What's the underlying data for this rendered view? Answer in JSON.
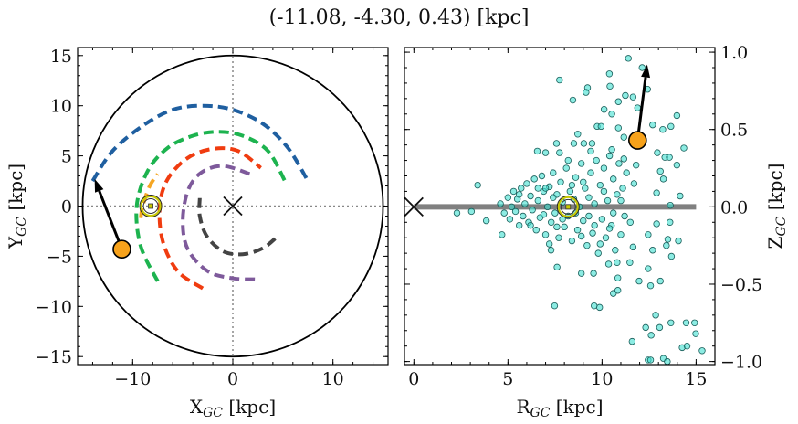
{
  "title": "(-11.08, -4.30, 0.43) [kpc]",
  "chart_data": [
    {
      "type": "scatter",
      "panel": "left",
      "xlabel": {
        "main": "X",
        "sub": "GC",
        "unit": " [kpc]"
      },
      "ylabel": {
        "main": "Y",
        "sub": "GC",
        "unit": " [kpc]"
      },
      "xlim": [
        -15.5,
        15.5
      ],
      "ylim": [
        -15.8,
        15.8
      ],
      "xticks": [
        -10,
        0,
        10
      ],
      "xtick_labels": [
        "−10",
        "0",
        "10"
      ],
      "xminor_step": 2,
      "yticks": [
        -15,
        -10,
        -5,
        0,
        5,
        10,
        15
      ],
      "ytick_labels": [
        "−15",
        "−10",
        "−5",
        "0",
        "5",
        "10",
        "15"
      ],
      "yminor_step": 1,
      "grid": false,
      "reference_lines": {
        "x": 0,
        "y": 0,
        "style": "dotted",
        "color": "#888888"
      },
      "boundary_circle_radius": 15,
      "galactic_center": [
        0,
        0
      ],
      "sun_position": [
        -8.2,
        0
      ],
      "source_position": [
        -11.08,
        -4.3
      ],
      "source_velocity_arrow_tip": [
        -13.8,
        2.7
      ],
      "spiral_arms": [
        {
          "color": "#1f5fa0",
          "points": [
            [
              -14,
              2.5
            ],
            [
              -12,
              5.5
            ],
            [
              -9,
              8
            ],
            [
              -6,
              9.6
            ],
            [
              -3,
              10
            ],
            [
              0,
              9.6
            ],
            [
              3,
              8.2
            ],
            [
              5.5,
              5.8
            ],
            [
              7.5,
              2.5
            ]
          ]
        },
        {
          "color": "#1db34f",
          "points": [
            [
              -7.5,
              -7.5
            ],
            [
              -9.2,
              -4
            ],
            [
              -9.6,
              0
            ],
            [
              -8.5,
              3.5
            ],
            [
              -6.5,
              5.8
            ],
            [
              -4,
              7
            ],
            [
              -1.5,
              7.4
            ],
            [
              1,
              7
            ],
            [
              3.5,
              5.5
            ],
            [
              5.2,
              2.5
            ]
          ]
        },
        {
          "color": "#f5a623",
          "points": [
            [
              -9.2,
              -1.2
            ],
            [
              -9.0,
              0
            ],
            [
              -8.3,
              2
            ],
            [
              -7.5,
              3.2
            ]
          ]
        },
        {
          "color": "#f03c10",
          "points": [
            [
              -3,
              -8.2
            ],
            [
              -5.5,
              -6.5
            ],
            [
              -7,
              -3.5
            ],
            [
              -7.3,
              0
            ],
            [
              -6.5,
              2.7
            ],
            [
              -4.5,
              4.8
            ],
            [
              -2,
              5.7
            ],
            [
              0.5,
              5.5
            ],
            [
              2.8,
              3.8
            ]
          ]
        },
        {
          "color": "#7e5a9b",
          "points": [
            [
              2.2,
              -7.3
            ],
            [
              0,
              -7.2
            ],
            [
              -2.5,
              -6.5
            ],
            [
              -4.5,
              -4.3
            ],
            [
              -5,
              -1.5
            ],
            [
              -4.5,
              1.5
            ],
            [
              -3.2,
              3.3
            ],
            [
              -1,
              4
            ],
            [
              1.7,
              3.2
            ]
          ]
        },
        {
          "color": "#444444",
          "points": [
            [
              -3.3,
              0.8
            ],
            [
              -3.3,
              -1
            ],
            [
              -2.6,
              -3
            ],
            [
              -1,
              -4.5
            ],
            [
              1,
              -4.8
            ],
            [
              3,
              -4.2
            ],
            [
              4.5,
              -3
            ]
          ]
        }
      ]
    },
    {
      "type": "scatter",
      "panel": "right",
      "xlabel": {
        "main": "R",
        "sub": "GC",
        "unit": " [kpc]"
      },
      "ylabel": {
        "main": "Z",
        "sub": "GC",
        "unit": " [kpc]"
      },
      "xlim": [
        -0.5,
        16
      ],
      "ylim": [
        -1.02,
        1.03
      ],
      "xticks": [
        0,
        5,
        10,
        15
      ],
      "xtick_labels": [
        "0",
        "5",
        "10",
        "15"
      ],
      "xminor_step": 1,
      "yticks": [
        -1.0,
        -0.5,
        0.0,
        0.5,
        1.0
      ],
      "ytick_labels": [
        "−1.0",
        "−0.5",
        "0.0",
        "0.5",
        "1.0"
      ],
      "yminor_step": 0.1,
      "ytick_side": "right",
      "grid": false,
      "disk_line": {
        "from": 0,
        "to": 15,
        "z": 0,
        "color": "#808080"
      },
      "galactic_center": [
        0,
        0
      ],
      "sun_position": [
        8.2,
        0
      ],
      "source_position": [
        11.89,
        0.43
      ],
      "source_velocity_arrow_tip": [
        12.4,
        0.92
      ],
      "point_color": "#40e0d0",
      "point_edge_color": "#1a5e5a",
      "points": [
        [
          11.4,
          0.96
        ],
        [
          12.13,
          0.9
        ],
        [
          7.74,
          0.82
        ],
        [
          10.39,
          0.86
        ],
        [
          10.42,
          0.78
        ],
        [
          9.23,
          0.77
        ],
        [
          9.15,
          0.74
        ],
        [
          8.45,
          0.69
        ],
        [
          10.11,
          0.63
        ],
        [
          10.52,
          0.6
        ],
        [
          10.87,
          0.68
        ],
        [
          11.24,
          0.72
        ],
        [
          11.65,
          0.71
        ],
        [
          12.42,
          0.76
        ],
        [
          11.89,
          0.64
        ],
        [
          13.98,
          0.59
        ],
        [
          13.66,
          0.52
        ],
        [
          13.23,
          0.5
        ],
        [
          12.69,
          0.53
        ],
        [
          14.35,
          0.38
        ],
        [
          13.98,
          0.27
        ],
        [
          14.15,
          0.07
        ],
        [
          13.63,
          0.01
        ],
        [
          13.61,
          -0.1
        ],
        [
          12.9,
          -0.11
        ],
        [
          13.5,
          -0.21
        ],
        [
          14.06,
          -0.22
        ],
        [
          13.69,
          -0.32
        ],
        [
          13.1,
          -0.48
        ],
        [
          12.58,
          -0.51
        ],
        [
          11.97,
          -0.48
        ],
        [
          10.84,
          -0.46
        ],
        [
          10.6,
          -0.56
        ],
        [
          10.84,
          -0.54
        ],
        [
          9.87,
          -0.65
        ],
        [
          9.58,
          -0.64
        ],
        [
          7.48,
          -0.64
        ],
        [
          7.61,
          -0.39
        ],
        [
          12.85,
          -0.7
        ],
        [
          12.32,
          -0.78
        ],
        [
          13.06,
          -0.78
        ],
        [
          13.66,
          -0.75
        ],
        [
          14.47,
          -0.75
        ],
        [
          14.92,
          -0.75
        ],
        [
          14.98,
          -0.82
        ],
        [
          12.61,
          -0.83
        ],
        [
          11.6,
          -0.87
        ],
        [
          14.26,
          -0.91
        ],
        [
          14.52,
          -0.9
        ],
        [
          15.32,
          -0.93
        ],
        [
          12.45,
          -0.99
        ],
        [
          12.58,
          -0.99
        ],
        [
          13.26,
          -0.98
        ],
        [
          13.47,
          -1.0
        ],
        [
          2.29,
          -0.04
        ],
        [
          3.06,
          -0.03
        ],
        [
          3.39,
          0.14
        ],
        [
          3.85,
          -0.09
        ],
        [
          4.68,
          -0.18
        ],
        [
          6.56,
          0.36
        ],
        [
          7.0,
          0.35
        ],
        [
          7.58,
          0.41
        ],
        [
          7.74,
          0.35
        ],
        [
          8.5,
          0.41
        ],
        [
          8.71,
          0.47
        ],
        [
          9.03,
          0.41
        ],
        [
          9.74,
          0.52
        ],
        [
          9.95,
          0.52
        ],
        [
          9.47,
          0.41
        ],
        [
          7.29,
          -0.28
        ],
        [
          8.9,
          -0.43
        ],
        [
          9.55,
          -0.43
        ],
        [
          10.35,
          -0.37
        ],
        [
          11.48,
          -0.36
        ],
        [
          11.65,
          -0.26
        ],
        [
          12.45,
          -0.18
        ],
        [
          12.69,
          -0.28
        ],
        [
          13.42,
          -0.25
        ],
        [
          12.45,
          -0.4
        ],
        [
          13.1,
          0.23
        ],
        [
          13.26,
          0.18
        ],
        [
          12.9,
          0.09
        ],
        [
          11.81,
          0.27
        ],
        [
          11.16,
          0.31
        ],
        [
          10.52,
          0.37
        ],
        [
          11.16,
          0.45
        ],
        [
          10.87,
          0.51
        ],
        [
          12.94,
          0.35
        ],
        [
          13.34,
          0.32
        ],
        [
          13.58,
          0.32
        ],
        [
          4.6,
          0.02
        ],
        [
          4.8,
          -0.04
        ],
        [
          5.0,
          0.06
        ],
        [
          5.1,
          -0.08
        ],
        [
          5.2,
          0.0
        ],
        [
          5.3,
          0.1
        ],
        [
          5.4,
          -0.03
        ],
        [
          5.5,
          0.05
        ],
        [
          5.6,
          -0.12
        ],
        [
          5.7,
          0.12
        ],
        [
          5.8,
          -0.06
        ],
        [
          5.9,
          0.02
        ],
        [
          6.0,
          0.15
        ],
        [
          6.1,
          -0.1
        ],
        [
          6.2,
          0.07
        ],
        [
          6.3,
          -0.02
        ],
        [
          6.4,
          0.18
        ],
        [
          6.5,
          -0.15
        ],
        [
          6.6,
          0.04
        ],
        [
          6.7,
          -0.07
        ],
        [
          6.8,
          0.2
        ],
        [
          6.9,
          0.1
        ],
        [
          7.0,
          -0.18
        ],
        [
          7.1,
          0.0
        ],
        [
          7.2,
          0.13
        ],
        [
          7.3,
          -0.1
        ],
        [
          7.4,
          0.22
        ],
        [
          7.5,
          -0.04
        ],
        [
          7.6,
          0.08
        ],
        [
          7.7,
          -0.2
        ],
        [
          7.8,
          0.16
        ],
        [
          7.9,
          0.03
        ],
        [
          8.0,
          -0.13
        ],
        [
          8.1,
          0.25
        ],
        [
          8.2,
          -0.06
        ],
        [
          8.3,
          0.1
        ],
        [
          8.4,
          -0.22
        ],
        [
          8.5,
          0.05
        ],
        [
          8.6,
          0.19
        ],
        [
          8.7,
          -0.15
        ],
        [
          8.8,
          0.0
        ],
        [
          8.9,
          0.28
        ],
        [
          9.0,
          -0.09
        ],
        [
          9.1,
          0.12
        ],
        [
          9.2,
          -0.25
        ],
        [
          9.3,
          0.06
        ],
        [
          9.4,
          0.22
        ],
        [
          9.5,
          -0.17
        ],
        [
          9.6,
          0.02
        ],
        [
          9.7,
          0.3
        ],
        [
          9.8,
          -0.3
        ],
        [
          9.9,
          0.14
        ],
        [
          10.0,
          -0.08
        ],
        [
          10.1,
          0.25
        ],
        [
          10.2,
          -0.2
        ],
        [
          10.3,
          0.04
        ],
        [
          10.4,
          0.33
        ],
        [
          10.5,
          -0.12
        ],
        [
          10.6,
          0.18
        ],
        [
          10.7,
          -0.28
        ],
        [
          10.8,
          0.08
        ],
        [
          10.9,
          0.28
        ],
        [
          11.0,
          -0.18
        ],
        [
          11.1,
          0.12
        ],
        [
          11.2,
          -0.06
        ],
        [
          11.3,
          0.22
        ],
        [
          11.5,
          -0.1
        ],
        [
          11.7,
          0.15
        ],
        [
          6.2,
          -0.12
        ],
        [
          6.9,
          -0.05
        ],
        [
          7.4,
          0.06
        ],
        [
          7.9,
          -0.08
        ],
        [
          8.6,
          -0.04
        ],
        [
          9.0,
          0.16
        ],
        [
          9.6,
          -0.12
        ],
        [
          10.1,
          0.1
        ],
        [
          10.6,
          -0.04
        ],
        [
          7.0,
          0.12
        ],
        [
          8.4,
          0.14
        ],
        [
          9.3,
          -0.06
        ],
        [
          5.6,
          0.08
        ],
        [
          6.6,
          0.12
        ],
        [
          7.6,
          -0.13
        ],
        [
          8.9,
          -0.19
        ],
        [
          9.9,
          -0.24
        ],
        [
          10.4,
          -0.14
        ],
        [
          11.0,
          0.04
        ],
        [
          10.8,
          -0.36
        ],
        [
          9.4,
          0.36
        ],
        [
          8.2,
          0.3
        ],
        [
          7.2,
          -0.24
        ]
      ]
    }
  ],
  "colors": {
    "source": "#f7a21b",
    "sun_ring": "#c8c800",
    "cross": "#111111"
  }
}
